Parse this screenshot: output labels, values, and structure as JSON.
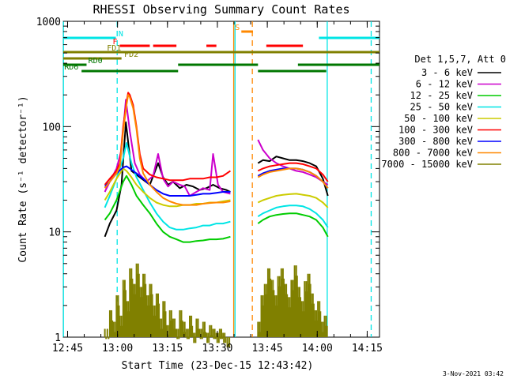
{
  "chart_data": {
    "type": "line",
    "title": "RHESSI Observing Summary Count Rates",
    "xlabel": "Start Time (23-Dec-15 12:43:42)",
    "ylabel": "Count Rate (s⁻¹ detector⁻¹)",
    "yscale": "log",
    "ylim": [
      1,
      1000
    ],
    "xlim_minutes": [
      0,
      95
    ],
    "x_unit": "minutes after 12:43:42",
    "x_ticks": [
      {
        "t": 1.3,
        "label": "12:45"
      },
      {
        "t": 16.3,
        "label": "13:00"
      },
      {
        "t": 31.3,
        "label": "13:15"
      },
      {
        "t": 46.3,
        "label": "13:30"
      },
      {
        "t": 61.3,
        "label": "13:45"
      },
      {
        "t": 76.3,
        "label": "14:00"
      },
      {
        "t": 91.3,
        "label": "14:15"
      }
    ],
    "y_ticks": [
      {
        "v": 1,
        "label": "1"
      },
      {
        "v": 10,
        "label": "10"
      },
      {
        "v": 100,
        "label": "100"
      },
      {
        "v": 1000,
        "label": "1000"
      }
    ],
    "timestamp": "3-Nov-2021 03:42",
    "legend": {
      "header": "Det 1,5,7, Att 0",
      "placement": "right"
    },
    "series": [
      {
        "name": "3 - 6 keV",
        "color": "#000000",
        "segments": [
          {
            "x": [
              12.5,
              14,
              16,
              17.5,
              18.8,
              20.5,
              23,
              26,
              28.5,
              30,
              31.5,
              33,
              35,
              37,
              39,
              41,
              43,
              45,
              47,
              49,
              50.2
            ],
            "y": [
              9,
              12,
              16,
              28,
              110,
              38,
              33,
              28,
              45,
              33,
              28,
              30,
              26,
              28,
              27,
              25,
              26,
              28,
              26,
              25,
              24
            ]
          },
          {
            "x": [
              58.5,
              60,
              62,
              64,
              66,
              68,
              70,
              72,
              74,
              76,
              78,
              79.5
            ],
            "y": [
              45,
              48,
              47,
              52,
              50,
              48,
              48,
              47,
              45,
              42,
              32,
              22
            ]
          }
        ]
      },
      {
        "name": "6 - 12 keV",
        "color": "#cc00cc",
        "segments": [
          {
            "x": [
              12.5,
              14,
              16,
              17.5,
              18.8,
              20,
              21.5,
              23,
              25,
              27,
              28.5,
              30,
              31.5,
              33,
              35,
              36.5,
              38,
              40,
              42,
              44,
              45,
              46.5,
              48,
              50.2
            ],
            "y": [
              24,
              30,
              40,
              60,
              180,
              90,
              45,
              35,
              30,
              34,
              55,
              32,
              27,
              30,
              28,
              27,
              22,
              24,
              26,
              25,
              55,
              28,
              24,
              23
            ]
          },
          {
            "x": [
              58.5,
              60,
              62,
              64,
              66,
              68,
              70,
              72,
              74,
              76,
              78,
              79.5
            ],
            "y": [
              75,
              60,
              50,
              45,
              42,
              40,
              38,
              37,
              35,
              33,
              30,
              28
            ]
          }
        ]
      },
      {
        "name": "12 - 25 keV",
        "color": "#00cc00",
        "segments": [
          {
            "x": [
              12.5,
              14,
              16,
              18,
              19,
              20.5,
              22,
              24,
              26,
              28,
              30,
              32,
              34,
              36,
              38,
              40,
              42,
              44,
              46,
              48,
              50.2
            ],
            "y": [
              13,
              15,
              20,
              30,
              34,
              28,
              22,
              18,
              15,
              12,
              10,
              9,
              8.5,
              8,
              8,
              8.2,
              8.3,
              8.5,
              8.5,
              8.6,
              9
            ]
          },
          {
            "x": [
              58.5,
              60,
              62,
              64,
              66,
              68,
              70,
              72,
              74,
              76,
              78,
              79.5
            ],
            "y": [
              12,
              13,
              14,
              14.5,
              14.8,
              15,
              15,
              14.5,
              14,
              13,
              11,
              9
            ]
          }
        ]
      },
      {
        "name": "25 - 50 keV",
        "color": "#00e5e5",
        "segments": [
          {
            "x": [
              12.5,
              14,
              16,
              18,
              19,
              20.5,
              22,
              24,
              26,
              28,
              30,
              32,
              34,
              36,
              38,
              40,
              42,
              44,
              46,
              48,
              50.2
            ],
            "y": [
              17,
              22,
              32,
              50,
              70,
              45,
              33,
              25,
              19,
              15,
              12.5,
              11,
              10.5,
              10.5,
              10.8,
              11,
              11.5,
              11.5,
              12,
              12,
              12.5
            ]
          },
          {
            "x": [
              58.5,
              60,
              62,
              64,
              66,
              68,
              70,
              72,
              74,
              76,
              78,
              79.5
            ],
            "y": [
              14,
              15,
              16,
              17,
              17.5,
              17.8,
              17.8,
              17.5,
              16.5,
              15,
              13,
              11
            ]
          }
        ]
      },
      {
        "name": "50 - 100 keV",
        "color": "#cccc00",
        "segments": [
          {
            "x": [
              12.5,
              14,
              16,
              18,
              19,
              20.5,
              22,
              24,
              26,
              28,
              30,
              32,
              34,
              36,
              38,
              40,
              42,
              44,
              46,
              48,
              50.2
            ],
            "y": [
              20,
              24,
              32,
              40,
              38,
              33,
              28,
              24,
              21,
              19,
              18,
              17.5,
              17.5,
              18,
              18,
              18.5,
              18.5,
              19,
              19,
              19.5,
              20
            ]
          },
          {
            "x": [
              58.5,
              60,
              62,
              64,
              66,
              68,
              70,
              72,
              74,
              76,
              78,
              79.5
            ],
            "y": [
              19,
              20,
              21,
              22,
              22.5,
              22.8,
              23,
              22.5,
              22,
              21,
              19,
              17
            ]
          }
        ]
      },
      {
        "name": "100 - 300 keV",
        "color": "#ff0000",
        "segments": [
          {
            "x": [
              12.5,
              14,
              16,
              17,
              18,
              19,
              19.5,
              20,
              21,
              22,
              23,
              24,
              26,
              28,
              30,
              32,
              34,
              36,
              38,
              40,
              42,
              44,
              46,
              48,
              50.2
            ],
            "y": [
              28,
              32,
              38,
              45,
              100,
              170,
              210,
              200,
              160,
              100,
              55,
              40,
              35,
              33,
              32,
              31,
              31,
              31,
              32,
              32,
              32,
              33,
              33,
              34,
              38
            ]
          },
          {
            "x": [
              58.5,
              60,
              62,
              64,
              66,
              68,
              70,
              72,
              74,
              76,
              78,
              79.5
            ],
            "y": [
              38,
              40,
              42,
              43,
              44,
              45,
              45,
              44,
              42,
              40,
              35,
              30
            ]
          }
        ]
      },
      {
        "name": "300 - 800 keV",
        "color": "#0000ff",
        "segments": [
          {
            "x": [
              12.5,
              14,
              16,
              18,
              19,
              20,
              22,
              24,
              26,
              28,
              30,
              32,
              34,
              36,
              38,
              40,
              42,
              44,
              46,
              48,
              50.2
            ],
            "y": [
              27,
              30,
              36,
              41,
              42,
              40,
              36,
              32,
              28,
              25,
              23,
              22,
              22,
              22,
              22,
              22.5,
              23,
              23,
              23.5,
              24,
              24
            ]
          },
          {
            "x": [
              58.5,
              60,
              62,
              64,
              66,
              68,
              70,
              72,
              74,
              76,
              78,
              79.5
            ],
            "y": [
              34,
              36,
              38,
              39,
              40,
              40,
              40,
              39,
              37,
              34,
              30,
              26
            ]
          }
        ]
      },
      {
        "name": "800 - 7000 keV",
        "color": "#ff8800",
        "segments": [
          {
            "x": [
              12.5,
              14,
              16,
              17,
              18,
              19,
              19.5,
              20,
              21,
              22,
              23,
              24,
              26,
              28,
              30,
              32,
              34,
              36,
              38,
              40,
              42,
              44,
              46,
              48,
              50.2
            ],
            "y": [
              26,
              30,
              36,
              42,
              90,
              160,
              200,
              190,
              150,
              95,
              50,
              36,
              28,
              24,
              21,
              19.5,
              18.5,
              18,
              18,
              18,
              18.5,
              18.8,
              19,
              19,
              19.5
            ]
          },
          {
            "x": [
              58.5,
              60,
              62,
              64,
              66,
              68,
              70,
              72,
              74,
              76,
              78,
              79.5
            ],
            "y": [
              33,
              35,
              37,
              38,
              39,
              40,
              40,
              39,
              37,
              34,
              30,
              26
            ]
          }
        ]
      },
      {
        "name": "7000 - 15000 keV",
        "color": "#808000",
        "segments": [
          {
            "x": [
              12.5,
              14,
              15,
              16,
              17,
              18,
              19,
              20,
              21,
              22,
              23,
              24,
              25,
              26,
              27,
              28,
              29,
              30,
              31,
              32,
              33,
              34,
              35,
              36,
              37,
              38,
              39,
              40,
              41,
              42,
              43,
              44,
              45,
              46,
              47,
              48,
              49,
              50.2
            ],
            "y": [
              1.2,
              1.8,
              1.4,
              2.5,
              1.6,
              3.5,
              2.2,
              4.5,
              3.2,
              5,
              3,
              4,
              2.5,
              3.2,
              2,
              2.6,
              1.5,
              2.2,
              1.3,
              1.8,
              1.5,
              1.2,
              1.8,
              1.4,
              1.2,
              1.6,
              1.1,
              1.5,
              1.2,
              1.4,
              1.1,
              1.3,
              1.2,
              1.1,
              1.2,
              1.1,
              1.0,
              1.1
            ]
          },
          {
            "x": [
              58.5,
              59.5,
              60.5,
              61.5,
              62.5,
              63.5,
              64.5,
              65.5,
              66.5,
              67.5,
              68.5,
              69.5,
              70.5,
              71.5,
              72.5,
              73.5,
              74.5,
              75.5,
              76.5,
              77.5,
              78.5,
              79.5
            ],
            "y": [
              1.4,
              2.5,
              3.2,
              4.5,
              3.5,
              2.5,
              3.8,
              4.5,
              3.2,
              2.4,
              3.5,
              4.8,
              3,
              2.2,
              3.4,
              4,
              2.6,
              1.8,
              2.2,
              1.4,
              1.6,
              1.2
            ]
          }
        ]
      }
    ],
    "state_bars": [
      {
        "label": "N",
        "color": "#00e5e5",
        "segments": [
          [
            0,
            15.8
          ],
          [
            76.8,
            95
          ]
        ]
      },
      {
        "label": "F",
        "color": "#ff0000",
        "segments": [
          [
            17,
            26
          ],
          [
            27,
            34
          ],
          [
            43,
            46
          ],
          [
            61,
            72
          ]
        ]
      },
      {
        "label": "S",
        "color": "#ff8800",
        "segments": [
          [
            53.5,
            57
          ]
        ]
      },
      {
        "label": "FD1",
        "color": "#808000",
        "segments": [
          [
            0,
            95
          ]
        ]
      },
      {
        "label": "FD2",
        "color": "#808000",
        "segments": [
          [
            0,
            17.5
          ]
        ]
      },
      {
        "label": "RD0",
        "color": "#007700",
        "segments": [
          [
            0,
            7
          ],
          [
            34.5,
            58.5
          ],
          [
            70.5,
            95
          ]
        ]
      },
      {
        "label": "RD6",
        "color": "#007700",
        "segments": [
          [
            5.5,
            34.5
          ],
          [
            58.5,
            79
          ]
        ]
      }
    ],
    "vertical_markers": [
      {
        "color": "#00e5e5",
        "style": "solid",
        "t": 0.05
      },
      {
        "color": "#00e5e5",
        "style": "dashed",
        "t": 16.2
      },
      {
        "color": "#ff8800",
        "style": "solid",
        "t": 51.2
      },
      {
        "color": "#ff8800",
        "style": "dashed",
        "t": 56.8
      },
      {
        "color": "#00e5e5",
        "style": "solid",
        "t": 51.6
      },
      {
        "color": "#00e5e5",
        "style": "solid",
        "t": 79.3
      },
      {
        "color": "#00e5e5",
        "style": "dashed",
        "t": 92.5
      }
    ],
    "grid": false
  }
}
